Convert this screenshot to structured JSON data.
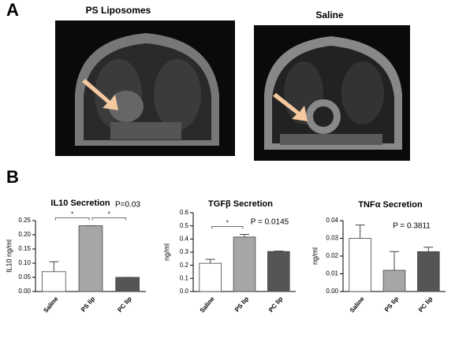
{
  "panel_a": {
    "label": "A",
    "images": [
      {
        "title": "PS Liposomes"
      },
      {
        "title": "Saline"
      }
    ]
  },
  "panel_b": {
    "label": "B"
  },
  "chart_data": [
    {
      "type": "bar",
      "title": "IL10 Secretion",
      "p_value": "P=0.03",
      "ylabel": "IL10 ng/ml",
      "categories": [
        "Saline",
        "PS lip",
        "PC lip"
      ],
      "values": [
        0.07,
        0.232,
        0.05
      ],
      "errors": [
        0.035,
        0,
        0
      ],
      "colors": [
        "#ffffff",
        "#a6a6a6",
        "#555555"
      ],
      "ylim": [
        0,
        0.25
      ],
      "yticks": [
        {
          "value": 0,
          "label": "0.00"
        },
        {
          "value": 0.05,
          "label": "0.05"
        },
        {
          "value": 0.1,
          "label": "0.10"
        },
        {
          "value": 0.15,
          "label": "0.15"
        },
        {
          "value": 0.2,
          "label": "0.20"
        },
        {
          "value": 0.25,
          "label": "0.25"
        }
      ],
      "brackets": [
        {
          "label": "*",
          "categories": [
            0,
            1
          ]
        },
        {
          "label": "*",
          "categories": [
            1,
            2
          ]
        }
      ]
    },
    {
      "type": "bar",
      "title": "TGFβ Secretion",
      "p_value": "P = 0.0145",
      "ylabel": "ng/ml",
      "categories": [
        "Saline",
        "PS lip",
        "PC lip"
      ],
      "values": [
        0.215,
        0.415,
        0.305
      ],
      "errors": [
        0.03,
        0.02,
        0.003
      ],
      "colors": [
        "#ffffff",
        "#a6a6a6",
        "#555555"
      ],
      "ylim": [
        0,
        0.6
      ],
      "yticks": [
        {
          "value": 0,
          "label": "0.0"
        },
        0.1,
        0.2,
        0.3,
        0.4,
        0.5,
        0.6
      ],
      "brackets": [
        {
          "label": "*",
          "categories": [
            0,
            1
          ]
        }
      ]
    },
    {
      "type": "bar",
      "title": "TNFα Secretion",
      "p_value": "P = 0.3811",
      "ylabel": "ng/ml",
      "categories": [
        "Saline",
        "PS lip",
        "PC lip"
      ],
      "values": [
        0.03,
        0.012,
        0.0225
      ],
      "errors": [
        0.0075,
        0.0105,
        0.0025
      ],
      "colors": [
        "#ffffff",
        "#a6a6a6",
        "#555555"
      ],
      "ylim": [
        0,
        0.04
      ],
      "yticks": [
        {
          "value": 0,
          "label": "0.00"
        },
        0.01,
        0.02,
        0.03,
        0.04
      ],
      "brackets": []
    }
  ]
}
